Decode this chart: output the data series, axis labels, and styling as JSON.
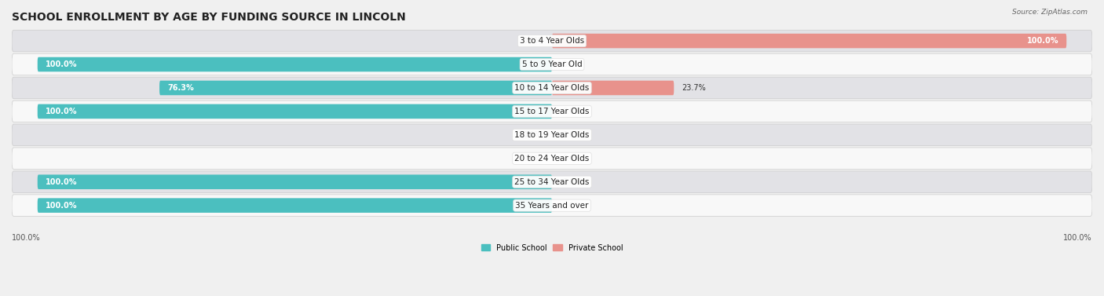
{
  "title": "SCHOOL ENROLLMENT BY AGE BY FUNDING SOURCE IN LINCOLN",
  "source": "Source: ZipAtlas.com",
  "categories": [
    "3 to 4 Year Olds",
    "5 to 9 Year Old",
    "10 to 14 Year Olds",
    "15 to 17 Year Olds",
    "18 to 19 Year Olds",
    "20 to 24 Year Olds",
    "25 to 34 Year Olds",
    "35 Years and over"
  ],
  "public_values": [
    0.0,
    100.0,
    76.3,
    100.0,
    0.0,
    0.0,
    100.0,
    100.0
  ],
  "private_values": [
    100.0,
    0.0,
    23.7,
    0.0,
    0.0,
    0.0,
    0.0,
    0.0
  ],
  "public_color": "#4BBFBF",
  "private_color": "#E8928C",
  "public_label": "Public School",
  "private_label": "Private School",
  "bg_color": "#f0f0f0",
  "row_bg_light": "#f8f8f8",
  "row_bg_dark": "#e2e2e6",
  "axis_label_left": "100.0%",
  "axis_label_right": "100.0%",
  "title_fontsize": 10,
  "label_fontsize": 7.5,
  "bar_fontsize": 7.0
}
